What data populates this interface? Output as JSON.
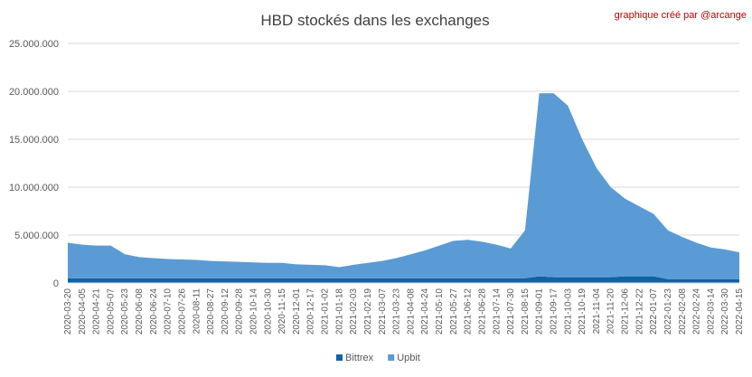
{
  "chart_data": {
    "type": "stacked_area",
    "title": "HBD stockés dans les exchanges",
    "annotation": "graphique créé par @arcange",
    "categories": [
      "2020-03-20",
      "2020-04-05",
      "2020-04-21",
      "2020-05-07",
      "2020-05-23",
      "2020-06-08",
      "2020-06-24",
      "2020-07-10",
      "2020-07-26",
      "2020-08-11",
      "2020-08-27",
      "2020-09-12",
      "2020-09-28",
      "2020-10-14",
      "2020-10-30",
      "2020-11-15",
      "2020-12-01",
      "2020-12-17",
      "2021-01-02",
      "2021-01-18",
      "2021-02-03",
      "2021-02-19",
      "2021-03-07",
      "2021-03-23",
      "2021-04-08",
      "2021-04-24",
      "2021-05-10",
      "2021-05-27",
      "2021-06-12",
      "2021-06-28",
      "2021-07-14",
      "2021-07-30",
      "2021-08-15",
      "2021-09-01",
      "2021-09-17",
      "2021-10-03",
      "2021-10-19",
      "2021-11-04",
      "2021-11-20",
      "2021-12-06",
      "2021-12-22",
      "2022-01-07",
      "2022-01-23",
      "2022-02-08",
      "2022-02-24",
      "2022-03-14",
      "2022-03-30",
      "2022-04-15"
    ],
    "series": [
      {
        "name": "Bittrex",
        "color": "#0e62a8",
        "values": [
          500000,
          500000,
          500000,
          500000,
          500000,
          500000,
          500000,
          500000,
          500000,
          500000,
          500000,
          500000,
          500000,
          500000,
          500000,
          500000,
          500000,
          500000,
          500000,
          500000,
          500000,
          500000,
          500000,
          500000,
          500000,
          500000,
          500000,
          500000,
          500000,
          500000,
          500000,
          500000,
          500000,
          700000,
          600000,
          600000,
          600000,
          600000,
          600000,
          700000,
          700000,
          700000,
          400000,
          400000,
          400000,
          400000,
          400000,
          400000
        ]
      },
      {
        "name": "Upbit",
        "color": "#5b9bd5",
        "values": [
          3700000,
          3500000,
          3400000,
          3400000,
          2500000,
          2200000,
          2100000,
          2000000,
          1950000,
          1900000,
          1800000,
          1750000,
          1700000,
          1650000,
          1600000,
          1600000,
          1450000,
          1400000,
          1350000,
          1150000,
          1400000,
          1600000,
          1800000,
          2100000,
          2500000,
          2900000,
          3400000,
          3900000,
          4000000,
          3800000,
          3500000,
          3100000,
          5000000,
          19100000,
          19200000,
          17900000,
          14400000,
          11400000,
          9400000,
          8100000,
          7300000,
          6500000,
          5100000,
          4400000,
          3800000,
          3300000,
          3100000,
          2800000
        ]
      }
    ],
    "ylim": [
      0,
      25000000
    ],
    "yticks": [
      0,
      {
        "value": 5000000,
        "label": "5.000.000"
      },
      {
        "value": 10000000,
        "label": "10.000.000"
      },
      {
        "value": 15000000,
        "label": "15.000.000"
      },
      {
        "value": 20000000,
        "label": "20.000.000"
      },
      {
        "value": 25000000,
        "label": "25.000.000"
      }
    ],
    "grid": true,
    "legend": "bottom"
  }
}
